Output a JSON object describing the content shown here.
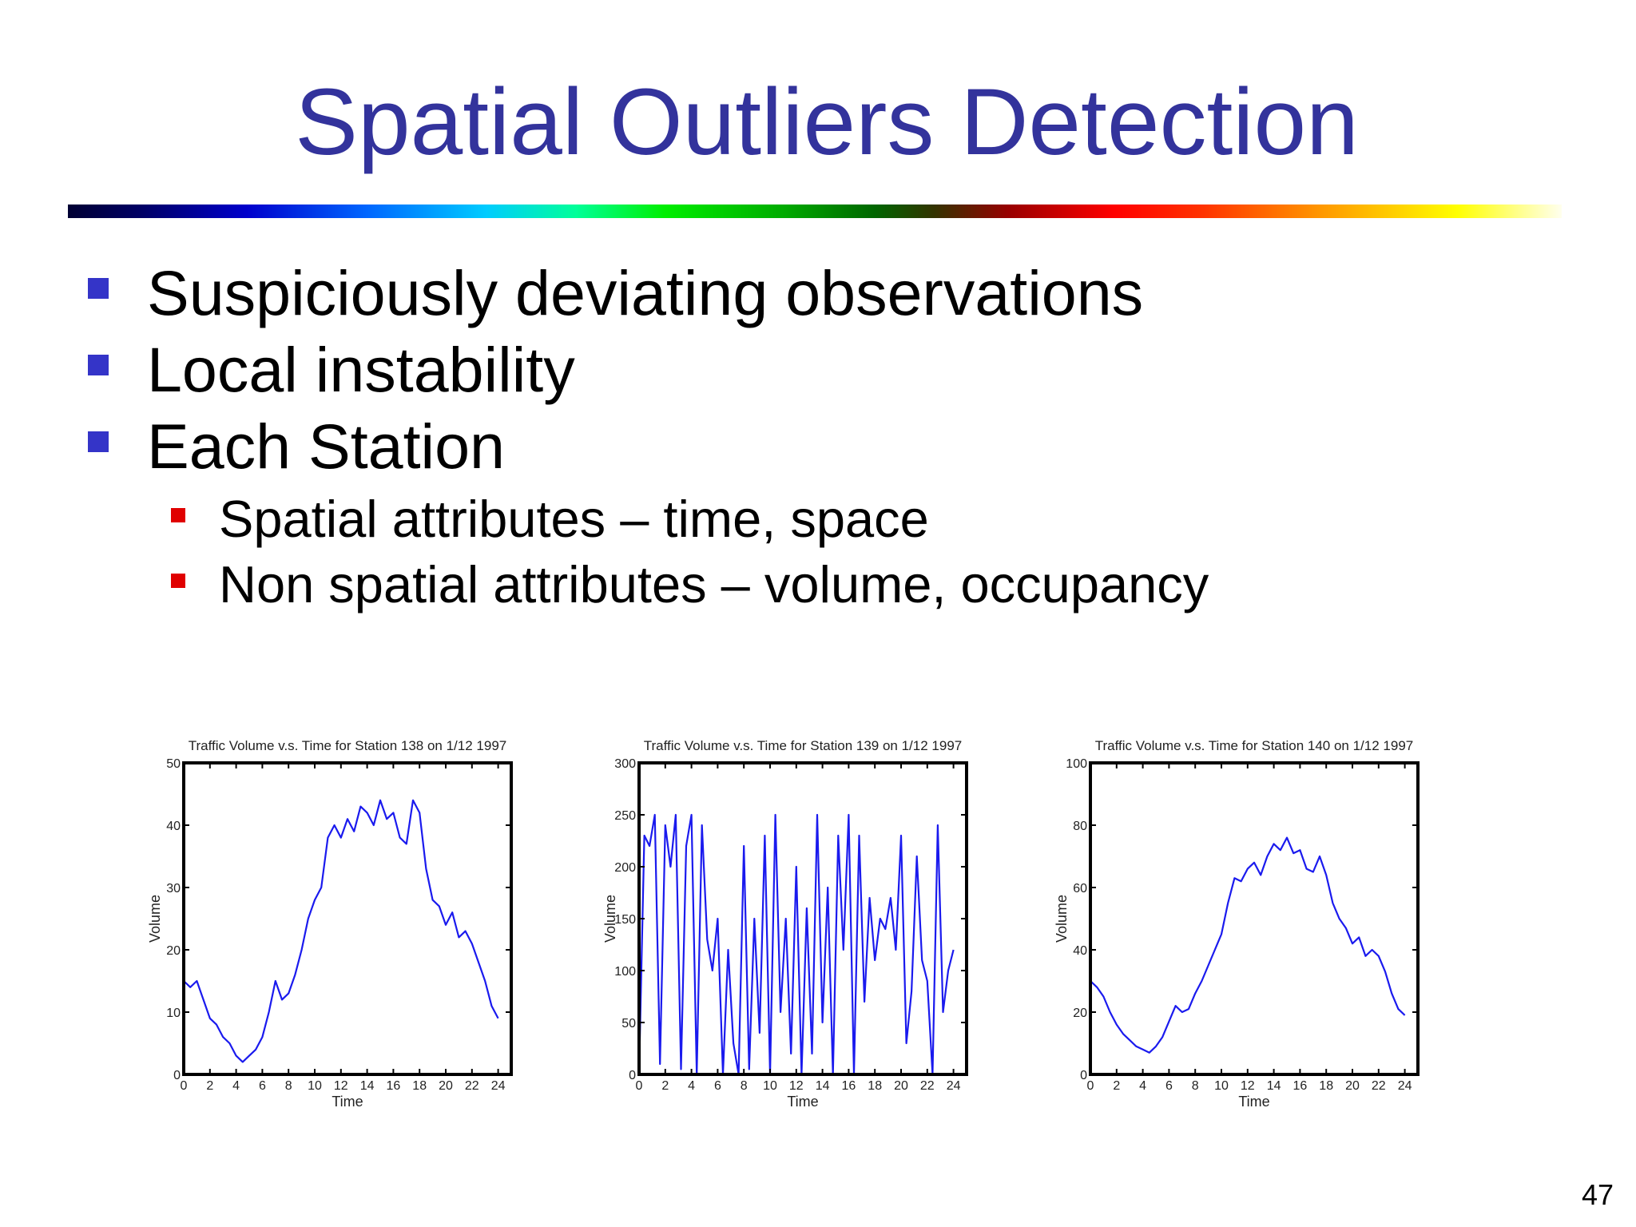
{
  "title": "Spatial Outliers Detection",
  "bullets": [
    "Suspiciously deviating observations",
    "Local instability",
    "Each Station"
  ],
  "sub_bullets": [
    "Spatial attributes – time, space",
    "Non spatial attributes – volume, occupancy"
  ],
  "page_number": "47",
  "colors": {
    "title": "#33339c",
    "bullet_marker": "#3434c8",
    "sub_bullet_marker": "#e00000",
    "series_line": "#1a1aee"
  },
  "chart_data": [
    {
      "type": "line",
      "title": "Traffic Volume v.s. Time for Station 138 on 1/12 1997",
      "xlabel": "Time",
      "ylabel": "Volume",
      "xlim": [
        0,
        25
      ],
      "ylim": [
        0,
        50
      ],
      "xticks": [
        "0",
        "2",
        "4",
        "6",
        "8",
        "10",
        "12",
        "14",
        "16",
        "18",
        "20",
        "22",
        "24"
      ],
      "yticks": [
        "0",
        "10",
        "20",
        "30",
        "40",
        "50"
      ],
      "series": [
        {
          "name": "Station 138",
          "x": [
            0,
            0.5,
            1,
            1.5,
            2,
            2.5,
            3,
            3.5,
            4,
            4.5,
            5,
            5.5,
            6,
            6.5,
            7,
            7.5,
            8,
            8.5,
            9,
            9.5,
            10,
            10.5,
            11,
            11.5,
            12,
            12.5,
            13,
            13.5,
            14,
            14.5,
            15,
            15.5,
            16,
            16.5,
            17,
            17.5,
            18,
            18.5,
            19,
            19.5,
            20,
            20.5,
            21,
            21.5,
            22,
            22.5,
            23,
            23.5,
            24
          ],
          "y": [
            15,
            14,
            15,
            12,
            9,
            8,
            6,
            5,
            3,
            2,
            3,
            4,
            6,
            10,
            15,
            12,
            13,
            16,
            20,
            25,
            28,
            30,
            38,
            40,
            38,
            41,
            39,
            43,
            42,
            40,
            44,
            41,
            42,
            38,
            37,
            44,
            42,
            33,
            28,
            27,
            24,
            26,
            22,
            23,
            21,
            18,
            15,
            11,
            9
          ]
        }
      ]
    },
    {
      "type": "line",
      "title": "Traffic Volume v.s. Time for Station 139 on 1/12 1997",
      "xlabel": "Time",
      "ylabel": "Volume",
      "xlim": [
        0,
        25
      ],
      "ylim": [
        0,
        300
      ],
      "xticks": [
        "0",
        "2",
        "4",
        "6",
        "8",
        "10",
        "12",
        "14",
        "16",
        "18",
        "20",
        "22",
        "24"
      ],
      "yticks": [
        "0",
        "50",
        "100",
        "150",
        "200",
        "250",
        "300"
      ],
      "series": [
        {
          "name": "Station 139",
          "x": [
            0,
            0.4,
            0.8,
            1.2,
            1.6,
            2,
            2.4,
            2.8,
            3.2,
            3.6,
            4,
            4.4,
            4.8,
            5.2,
            5.6,
            6,
            6.4,
            6.8,
            7.2,
            7.6,
            8,
            8.4,
            8.8,
            9.2,
            9.6,
            10,
            10.4,
            10.8,
            11.2,
            11.6,
            12,
            12.4,
            12.8,
            13.2,
            13.6,
            14,
            14.4,
            14.8,
            15.2,
            15.6,
            16,
            16.4,
            16.8,
            17.2,
            17.6,
            18,
            18.4,
            18.8,
            19.2,
            19.6,
            20,
            20.4,
            20.8,
            21.2,
            21.6,
            22,
            22.4,
            22.8,
            23.2,
            23.6,
            24
          ],
          "y": [
            0,
            230,
            220,
            250,
            10,
            240,
            200,
            250,
            5,
            220,
            250,
            0,
            240,
            130,
            100,
            150,
            0,
            120,
            30,
            0,
            220,
            5,
            150,
            40,
            230,
            0,
            250,
            60,
            150,
            20,
            200,
            0,
            160,
            20,
            250,
            50,
            180,
            0,
            230,
            120,
            250,
            0,
            230,
            70,
            170,
            110,
            150,
            140,
            170,
            120,
            230,
            30,
            80,
            210,
            110,
            90,
            0,
            240,
            60,
            100,
            120
          ]
        }
      ]
    },
    {
      "type": "line",
      "title": "Traffic Volume v.s. Time for Station 140 on 1/12 1997",
      "xlabel": "Time",
      "ylabel": "Volume",
      "xlim": [
        0,
        25
      ],
      "ylim": [
        0,
        100
      ],
      "xticks": [
        "0",
        "2",
        "4",
        "6",
        "8",
        "10",
        "12",
        "14",
        "16",
        "18",
        "20",
        "22",
        "24"
      ],
      "yticks": [
        "0",
        "20",
        "40",
        "60",
        "80",
        "100"
      ],
      "series": [
        {
          "name": "Station 140",
          "x": [
            0,
            0.5,
            1,
            1.5,
            2,
            2.5,
            3,
            3.5,
            4,
            4.5,
            5,
            5.5,
            6,
            6.5,
            7,
            7.5,
            8,
            8.5,
            9,
            9.5,
            10,
            10.5,
            11,
            11.5,
            12,
            12.5,
            13,
            13.5,
            14,
            14.5,
            15,
            15.5,
            16,
            16.5,
            17,
            17.5,
            18,
            18.5,
            19,
            19.5,
            20,
            20.5,
            21,
            21.5,
            22,
            22.5,
            23,
            23.5,
            24
          ],
          "y": [
            30,
            28,
            25,
            20,
            16,
            13,
            11,
            9,
            8,
            7,
            9,
            12,
            17,
            22,
            20,
            21,
            26,
            30,
            35,
            40,
            45,
            55,
            63,
            62,
            66,
            68,
            64,
            70,
            74,
            72,
            76,
            71,
            72,
            66,
            65,
            70,
            64,
            55,
            50,
            47,
            42,
            44,
            38,
            40,
            38,
            33,
            26,
            21,
            19
          ]
        }
      ]
    }
  ]
}
